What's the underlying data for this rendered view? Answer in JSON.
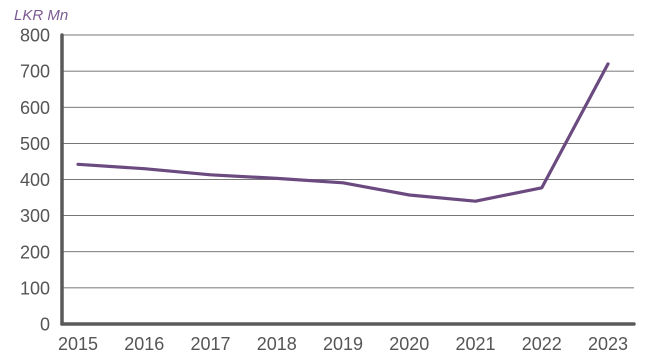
{
  "chart_data": {
    "type": "line",
    "title": "",
    "unit_label": "LKR Mn",
    "xlabel": "",
    "ylabel": "",
    "x": [
      "2015",
      "2016",
      "2017",
      "2018",
      "2019",
      "2020",
      "2021",
      "2022",
      "2023"
    ],
    "series": [
      {
        "values": [
          442,
          430,
          413,
          403,
          391,
          357,
          340,
          377,
          720
        ]
      }
    ],
    "yticks": [
      "0",
      "100",
      "200",
      "300",
      "400",
      "500",
      "600",
      "700",
      "800"
    ],
    "ylim": [
      0,
      800
    ],
    "grid": true,
    "legend": "none",
    "colors": {
      "line": "#6b4a80",
      "unit_label": "#7b5a93",
      "axis": "#5a5a5a",
      "grid": "#4a4a4a",
      "tick_text": "#555555"
    }
  }
}
